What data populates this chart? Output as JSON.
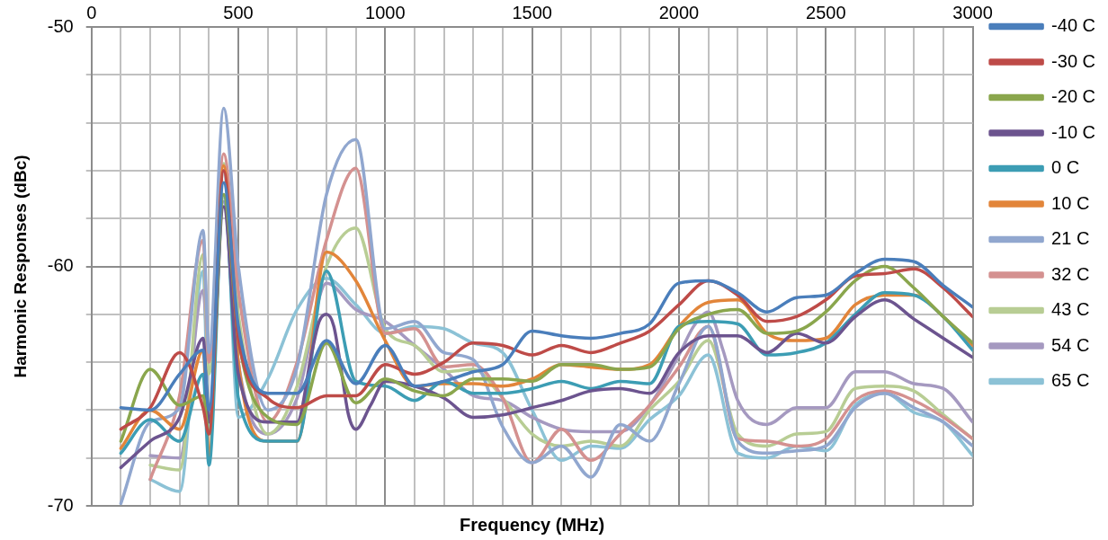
{
  "chart_data": {
    "type": "line",
    "xlabel": "Frequency (MHz)",
    "ylabel": "Harmonic Responses (dBc)",
    "x": [
      100,
      200,
      300,
      380,
      400,
      450,
      500,
      600,
      700,
      800,
      900,
      1000,
      1100,
      1200,
      1300,
      1400,
      1500,
      1600,
      1700,
      1800,
      1900,
      2000,
      2100,
      2200,
      2300,
      2400,
      2500,
      2600,
      2700,
      2800,
      2900,
      3000
    ],
    "xlim": [
      0,
      3000
    ],
    "xticks": [
      0,
      {
        "value": 100,
        "label": null
      },
      {
        "value": 200,
        "label": null
      },
      {
        "value": 300,
        "label": null
      },
      {
        "value": 400,
        "label": null
      },
      500,
      {
        "value": 600,
        "label": null
      },
      {
        "value": 700,
        "label": null
      },
      {
        "value": 800,
        "label": null
      },
      {
        "value": 900,
        "label": null
      },
      1000,
      {
        "value": 1100,
        "label": null
      },
      {
        "value": 1200,
        "label": null
      },
      {
        "value": 1300,
        "label": null
      },
      {
        "value": 1400,
        "label": null
      },
      1500,
      {
        "value": 1600,
        "label": null
      },
      {
        "value": 1700,
        "label": null
      },
      {
        "value": 1800,
        "label": null
      },
      {
        "value": 1900,
        "label": null
      },
      2000,
      {
        "value": 2100,
        "label": null
      },
      {
        "value": 2200,
        "label": null
      },
      {
        "value": 2300,
        "label": null
      },
      {
        "value": 2400,
        "label": null
      },
      2500,
      {
        "value": 2600,
        "label": null
      },
      {
        "value": 2700,
        "label": null
      },
      {
        "value": 2800,
        "label": null
      },
      {
        "value": 2900,
        "label": null
      },
      3000
    ],
    "ylim": [
      -70,
      -50
    ],
    "yticks": [
      -70,
      {
        "value": -68,
        "label": null
      },
      {
        "value": -66,
        "label": null
      },
      {
        "value": -64,
        "label": null
      },
      {
        "value": -62,
        "label": null
      },
      -60,
      {
        "value": -58,
        "label": null
      },
      {
        "value": -56,
        "label": null
      },
      {
        "value": -54,
        "label": null
      },
      {
        "value": -52,
        "label": null
      },
      -50
    ],
    "grid": true,
    "legend": "right",
    "marker": "none",
    "line_style": "solid",
    "series": [
      {
        "name": "-40 C",
        "color": "#4a7ebb",
        "values": [
          -65.9,
          -66.0,
          -64.5,
          -63.5,
          -66.0,
          -56.5,
          -62.5,
          -65.3,
          -65.3,
          -63.1,
          -64.9,
          -63.3,
          -65.0,
          -64.8,
          -64.4,
          -64.1,
          -62.7,
          -62.9,
          -63.0,
          -62.8,
          -62.4,
          -60.7,
          -60.6,
          -61.1,
          -61.9,
          -61.3,
          -61.2,
          -60.3,
          -59.7,
          -59.8,
          -60.8,
          -61.7
        ]
      },
      {
        "name": "-30 C",
        "color": "#be4b48",
        "values": [
          -66.8,
          -65.9,
          -63.6,
          -65.9,
          -67.0,
          -56.0,
          -63.0,
          -65.5,
          -65.9,
          -65.4,
          -65.4,
          -64.1,
          -64.5,
          -64.0,
          -63.2,
          -63.3,
          -63.7,
          -63.3,
          -63.6,
          -63.2,
          -62.7,
          -61.6,
          -60.6,
          -61.2,
          -62.3,
          -62.1,
          -61.4,
          -60.4,
          -60.3,
          -60.1,
          -60.9,
          -62.1
        ]
      },
      {
        "name": "-20 C",
        "color": "#8aa64d",
        "values": [
          -67.3,
          -64.3,
          -65.8,
          -65.4,
          -67.0,
          -57.0,
          -63.0,
          -66.3,
          -66.6,
          -63.2,
          -65.7,
          -64.7,
          -65.2,
          -65.4,
          -64.7,
          -64.7,
          -64.8,
          -64.1,
          -64.1,
          -64.3,
          -64.2,
          -62.6,
          -62.0,
          -61.8,
          -62.8,
          -62.7,
          -61.9,
          -60.6,
          -60.0,
          -60.9,
          -62.1,
          -63.2
        ]
      },
      {
        "name": "-10 C",
        "color": "#6c548f",
        "x": [
          100,
          200,
          300,
          380,
          400,
          450,
          500,
          600,
          700,
          750,
          775,
          800,
          825,
          850,
          875,
          900,
          950,
          1000,
          1100,
          1200,
          1300,
          1400,
          1500,
          1600,
          1700,
          1800,
          1900,
          2000,
          2100,
          2200,
          2300,
          2400,
          2500,
          2600,
          2700,
          2800,
          2900,
          3000
        ],
        "values": [
          -68.4,
          -67.3,
          -66.3,
          -63.0,
          -66.5,
          -57.5,
          -64.5,
          -66.5,
          -66.5,
          -63.6,
          -62.3,
          -62.0,
          -62.5,
          -64.3,
          -66.2,
          -66.8,
          -65.8,
          -64.8,
          -65.0,
          -65.5,
          -66.3,
          -66.2,
          -65.9,
          -65.6,
          -65.2,
          -65.1,
          -65.3,
          -63.6,
          -62.9,
          -62.9,
          -63.6,
          -62.8,
          -63.2,
          -62.1,
          -61.4,
          -62.2,
          -63.0,
          -63.8
        ]
      },
      {
        "name": "0 C",
        "color": "#3c9db4",
        "values": [
          -67.8,
          -66.4,
          -67.3,
          -64.5,
          -68.3,
          -57.0,
          -65.5,
          -67.3,
          -67.3,
          -60.2,
          -64.8,
          -65.0,
          -65.6,
          -64.8,
          -65.3,
          -65.3,
          -65.1,
          -64.8,
          -65.1,
          -64.8,
          -64.9,
          -62.5,
          -62.3,
          -62.4,
          -63.7,
          -63.6,
          -63.2,
          -62.0,
          -61.1,
          -61.2,
          -62.1,
          -63.5
        ]
      },
      {
        "name": "10 C",
        "color": "#e2853a",
        "values": [
          -67.6,
          -66.0,
          -66.8,
          -63.5,
          -67.9,
          -55.8,
          -64.0,
          -67.3,
          -67.3,
          -59.4,
          -60.6,
          -63.1,
          -65.0,
          -64.9,
          -64.9,
          -65.0,
          -64.7,
          -64.1,
          -64.2,
          -64.3,
          -64.1,
          -62.5,
          -61.5,
          -61.4,
          -62.8,
          -63.1,
          -63.0,
          -61.6,
          -61.2,
          -61.2,
          -62.1,
          -63.3
        ]
      },
      {
        "name": "21 C",
        "color": "#91a7cf",
        "values": [
          -69.9,
          -66.5,
          -65.9,
          -58.5,
          -63.6,
          -53.4,
          -60.0,
          -66.0,
          -64.2,
          -57.0,
          -54.7,
          -62.6,
          -62.3,
          -63.6,
          -63.9,
          -66.7,
          -68.2,
          -67.5,
          -68.8,
          -66.6,
          -67.3,
          -64.9,
          -62.5,
          -67.3,
          -67.8,
          -67.7,
          -67.5,
          -65.9,
          -65.3,
          -65.9,
          -66.5,
          -67.5
        ]
      },
      {
        "name": "32 C",
        "color": "#d49190",
        "values": [
          null,
          -68.9,
          -65.4,
          -58.9,
          -64.0,
          -55.3,
          -61.0,
          -66.5,
          -64.0,
          -58.9,
          -55.9,
          -62.8,
          -62.6,
          -64.2,
          -64.1,
          -65.5,
          -68.2,
          -66.8,
          -68.1,
          -67.0,
          -65.8,
          -64.2,
          -62.5,
          -67.2,
          -67.3,
          -67.5,
          -67.2,
          -65.6,
          -65.2,
          -65.6,
          -66.3,
          -67.2
        ]
      },
      {
        "name": "43 C",
        "color": "#b8cd94",
        "values": [
          null,
          -68.3,
          -68.5,
          -59.5,
          -64.5,
          -55.7,
          -62.0,
          -67.0,
          -65.0,
          -60.0,
          -58.4,
          -62.6,
          -63.3,
          -64.4,
          -64.3,
          -65.5,
          -67.0,
          -67.5,
          -67.3,
          -67.5,
          -66.0,
          -64.8,
          -63.1,
          -67.0,
          -67.5,
          -67.0,
          -66.9,
          -65.1,
          -65.0,
          -65.2,
          -66.2,
          -67.2
        ]
      },
      {
        "name": "54 C",
        "color": "#a599c0",
        "x": [
          200,
          300,
          380,
          400,
          450,
          500,
          600,
          700,
          800,
          900,
          1000,
          1100,
          1200,
          1300,
          1400,
          1500,
          1600,
          1700,
          1800,
          1900,
          2000,
          2050,
          2100,
          2150,
          2200,
          2300,
          2400,
          2500,
          2600,
          2700,
          2800,
          2900,
          3000
        ],
        "values": [
          -67.9,
          -68.0,
          -61.0,
          -64.0,
          -57.3,
          -64.0,
          -67.0,
          -65.5,
          -60.7,
          -61.8,
          -62.3,
          -63.3,
          -64.3,
          -65.4,
          -65.6,
          -66.3,
          -66.8,
          -66.9,
          -66.9,
          -65.8,
          -63.7,
          -62.5,
          -61.9,
          -63.5,
          -65.6,
          -66.6,
          -65.9,
          -65.9,
          -64.4,
          -64.4,
          -64.9,
          -65.1,
          -66.5
        ]
      },
      {
        "name": "65 C",
        "color": "#8cc2d6",
        "values": [
          null,
          -68.9,
          -69.4,
          -60.2,
          -66.8,
          -56.0,
          -66.3,
          -64.7,
          -61.8,
          -60.5,
          -61.6,
          -62.8,
          -62.5,
          -62.6,
          -63.2,
          -63.6,
          -66.0,
          -68.1,
          -67.5,
          -67.6,
          -66.4,
          -65.4,
          -63.7,
          -67.8,
          -68.0,
          -67.5,
          -67.7,
          -65.8,
          -65.3,
          -66.1,
          -66.5,
          -67.9
        ]
      }
    ]
  }
}
